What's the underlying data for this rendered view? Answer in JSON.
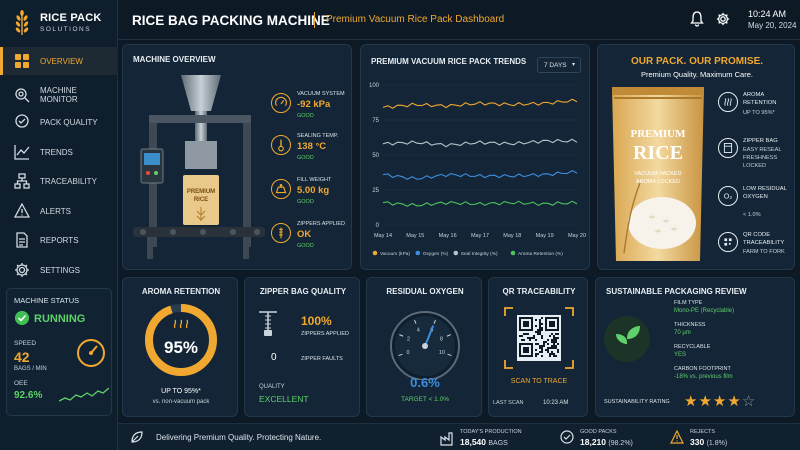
{
  "brand": {
    "name": "RICE PACK",
    "tagline": "SOLUTIONS"
  },
  "header": {
    "title": "RICE BAG PACKING MACHINE",
    "subtitle": "Premium Vacuum Rice Pack Dashboard",
    "time": "10:24 AM",
    "date": "May 20, 2024"
  },
  "nav": [
    {
      "label": "OVERVIEW",
      "icon": "grid-icon",
      "active": true
    },
    {
      "label": "MACHINE MONITOR",
      "icon": "gear-magnifier-icon"
    },
    {
      "label": "PACK QUALITY",
      "icon": "badge-check-icon"
    },
    {
      "label": "TRENDS",
      "icon": "line-chart-icon"
    },
    {
      "label": "TRACEABILITY",
      "icon": "network-icon"
    },
    {
      "label": "ALERTS",
      "icon": "warning-icon"
    },
    {
      "label": "REPORTS",
      "icon": "document-icon"
    },
    {
      "label": "SETTINGS",
      "icon": "gear-icon"
    }
  ],
  "machine_status": {
    "title": "MACHINE STATUS",
    "state": "RUNNING",
    "speed_label": "SPEED",
    "speed_value": "42",
    "speed_unit": "BAGS / MIN",
    "oee_label": "OEE",
    "oee_value": "92.6%"
  },
  "machine_overview": {
    "title": "MACHINE OVERVIEW",
    "bag_text": "PREMIUM RICE",
    "stats": [
      {
        "label": "VACUUM SYSTEM",
        "value": "-92 kPa",
        "status": "GOOD",
        "icon": "gauge-icon"
      },
      {
        "label": "SEALING TEMP.",
        "value": "138 °C",
        "status": "GOOD",
        "icon": "thermometer-icon"
      },
      {
        "label": "FILL WEIGHT",
        "value": "5.00 kg",
        "status": "GOOD",
        "icon": "scale-icon"
      },
      {
        "label": "ZIPPERS APPLIED",
        "value": "OK",
        "status": "GOOD",
        "icon": "zipper-icon"
      }
    ]
  },
  "trends": {
    "title": "PREMIUM VACUUM RICE PACK TRENDS",
    "range": "7 DAYS"
  },
  "chart_data": {
    "type": "line",
    "title": "PREMIUM VACUUM RICE PACK TRENDS",
    "categories": [
      "May 14",
      "May 15",
      "May 16",
      "May 17",
      "May 18",
      "May 19",
      "May 20"
    ],
    "ylim": [
      0,
      100
    ],
    "yticks": [
      0,
      25,
      50,
      75,
      100
    ],
    "grid": true,
    "legend": "bottom",
    "series": [
      {
        "name": "Vacuum (kPa)",
        "color": "#f0a830",
        "values": [
          84,
          86,
          85,
          87,
          86,
          87,
          89
        ]
      },
      {
        "name": "Oxygen (%)",
        "color": "#3d8ee0",
        "values": [
          36,
          33,
          36,
          35,
          35,
          36,
          38
        ]
      },
      {
        "name": "Seal Integrity (%)",
        "color": "#b8c2cc",
        "values": [
          58,
          59,
          57,
          59,
          58,
          60,
          60
        ]
      },
      {
        "name": "Aroma Retention (%)",
        "color": "#4cc35a",
        "values": [
          16,
          14,
          16,
          15,
          16,
          15,
          16
        ]
      }
    ]
  },
  "promo": {
    "headline": "OUR PACK. OUR PROMISE.",
    "subhead": "Premium Quality. Maximum Care.",
    "bag_line1": "PREMIUM",
    "bag_line2": "RICE",
    "bag_line3": "VACUUM PACKED",
    "bag_line4": "AROMA LOCKED",
    "features": [
      {
        "title": "AROMA RETENTION",
        "sub": "UP TO 95%*",
        "icon": "steam-icon"
      },
      {
        "title": "ZIPPER BAG",
        "sub": "EASY RESEAL FRESHNESS LOCKED",
        "icon": "zipper-bag-icon"
      },
      {
        "title": "LOW RESIDUAL OXYGEN",
        "sub": "< 1.0%",
        "icon": "oxygen-icon"
      },
      {
        "title": "QR CODE TRACEABILITY",
        "sub": "FARM TO FORK",
        "icon": "qr-icon"
      }
    ]
  },
  "aroma": {
    "title": "AROMA RETENTION",
    "value": "95%",
    "percent": 95,
    "caption": "UP TO 95%*",
    "note": "vs. non-vacuum pack"
  },
  "zipper": {
    "title": "ZIPPER BAG QUALITY",
    "applied_value": "100%",
    "applied_label": "ZIPPERS APPLIED",
    "faults_value": "0",
    "faults_label": "ZIPPER FAULTS",
    "quality_label": "QUALITY",
    "quality_value": "EXCELLENT"
  },
  "oxygen": {
    "title": "RESIDUAL OXYGEN",
    "value": "0.6%",
    "target": "TARGET < 1.0%",
    "gauge_value": 0.6,
    "ticks": [
      "0",
      "2",
      "4",
      "6",
      "8",
      "10"
    ]
  },
  "qr": {
    "title": "QR TRACEABILITY",
    "cta": "SCAN TO TRACE",
    "last_scan_label": "LAST SCAN",
    "last_scan_time": "10:23 AM"
  },
  "sustainability": {
    "title": "SUSTAINABLE PACKAGING REVIEW",
    "film_label": "FILM TYPE",
    "film_value": "Mono-PE (Recyclable)",
    "thickness_label": "THICKNESS",
    "thickness_value": "70 μm",
    "recyclable_label": "RECYCLABLE",
    "recyclable_value": "YES",
    "carbon_label": "CARBON FOOTPRINT",
    "carbon_value": "-18% vs. previous film",
    "rating_label": "SUSTAINABILITY RATING",
    "rating": 4,
    "rating_max": 5
  },
  "footer": {
    "tagline": "Delivering Premium Quality. Protecting Nature.",
    "production_label": "TODAY'S PRODUCTION",
    "production_value": "18,540",
    "production_unit": "BAGS",
    "good_label": "GOOD PACKS",
    "good_value": "18,210",
    "good_pct": "(98.2%)",
    "rejects_label": "REJECTS",
    "rejects_value": "330",
    "rejects_pct": "(1.8%)"
  }
}
